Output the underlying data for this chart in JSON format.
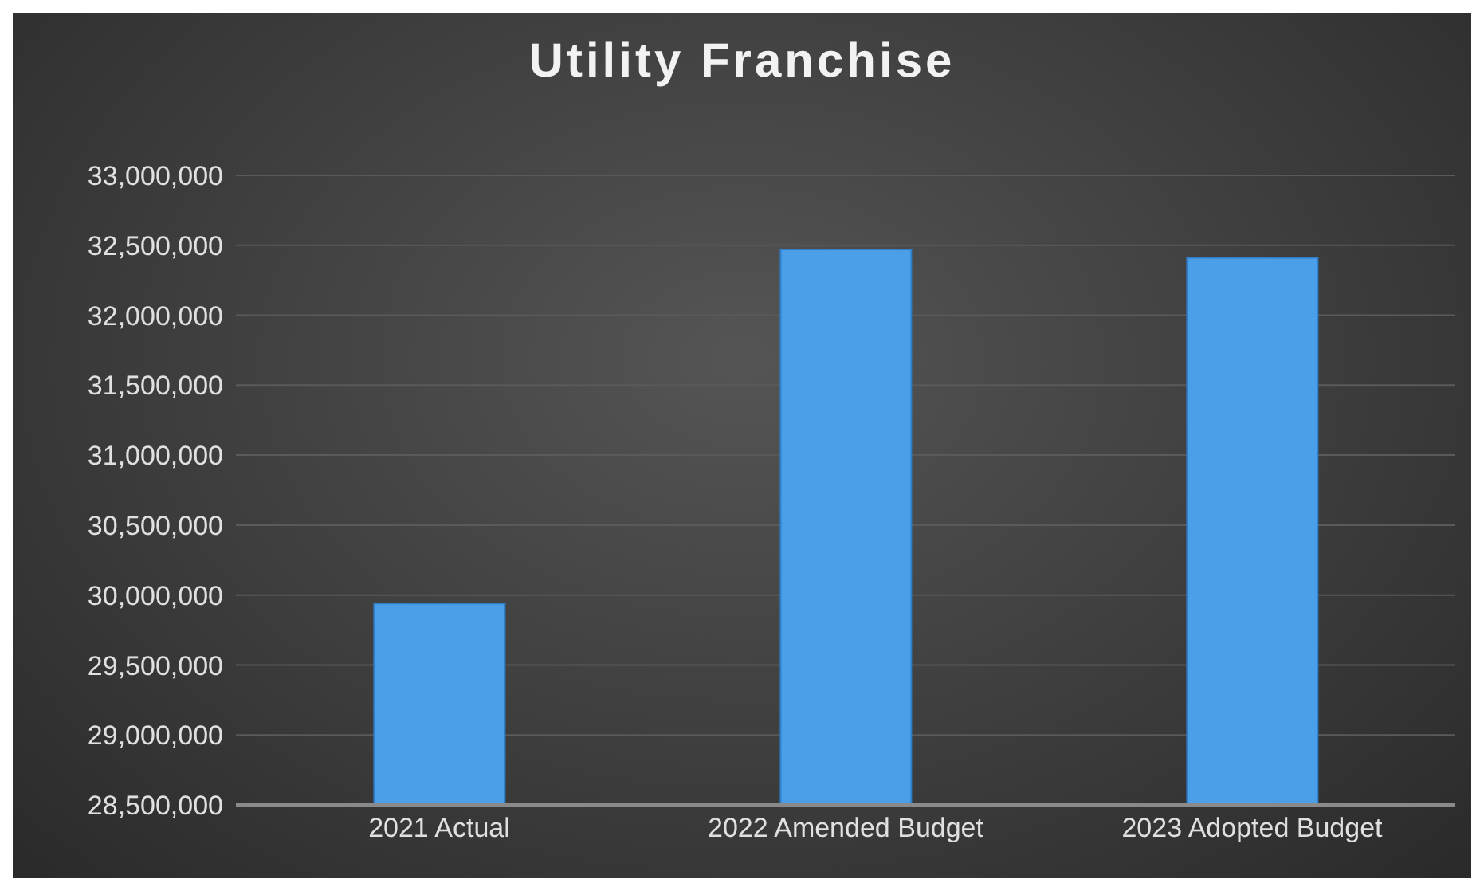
{
  "chart_data": {
    "type": "bar",
    "title": "Utility Franchise",
    "categories": [
      "2021 Actual",
      "2022 Amended Budget",
      "2023 Adopted Budget"
    ],
    "values": [
      29940000,
      32470000,
      32410000
    ],
    "color": "#4a9fe8",
    "ylim": [
      28500000,
      33000000
    ],
    "yticks": [
      {
        "value": 28500000,
        "label": "28,500,000"
      },
      {
        "value": 29000000,
        "label": "29,000,000"
      },
      {
        "value": 29500000,
        "label": "29,500,000"
      },
      {
        "value": 30000000,
        "label": "30,000,000"
      },
      {
        "value": 30500000,
        "label": "30,500,000"
      },
      {
        "value": 31000000,
        "label": "31,000,000"
      },
      {
        "value": 31500000,
        "label": "31,500,000"
      },
      {
        "value": 32000000,
        "label": "32,000,000"
      },
      {
        "value": 32500000,
        "label": "32,500,000"
      },
      {
        "value": 33000000,
        "label": "33,000,000"
      }
    ],
    "grid": "y"
  }
}
